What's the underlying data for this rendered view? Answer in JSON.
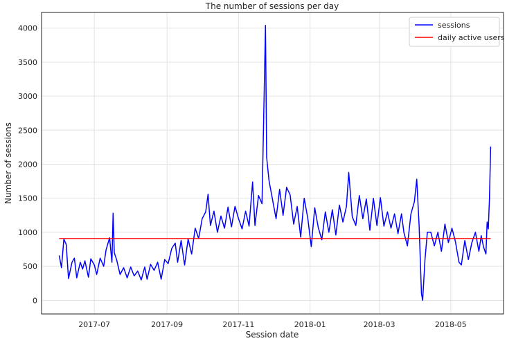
{
  "chart_data": {
    "type": "line",
    "title": "The number of sessions per day",
    "xlabel": "Session date",
    "ylabel": "Number of sessions",
    "xlim": [
      "2017-05-17",
      "2018-06-15"
    ],
    "ylim": [
      -200,
      4230
    ],
    "grid": true,
    "legend_position": "top-right",
    "x_ticks": [
      {
        "date": "2017-07-01",
        "label": "2017-07"
      },
      {
        "date": "2017-09-01",
        "label": "2017-09"
      },
      {
        "date": "2017-11-01",
        "label": "2017-11"
      },
      {
        "date": "2018-01-01",
        "label": "2018-01"
      },
      {
        "date": "2018-03-01",
        "label": "2018-03"
      },
      {
        "date": "2018-05-01",
        "label": "2018-05"
      }
    ],
    "y_ticks": [
      0,
      500,
      1000,
      1500,
      2000,
      2500,
      3000,
      3500,
      4000
    ],
    "series": [
      {
        "name": "sessions",
        "color": "#0000ff",
        "points": [
          [
            "2017-06-01",
            660
          ],
          [
            "2017-06-03",
            480
          ],
          [
            "2017-06-05",
            900
          ],
          [
            "2017-06-07",
            820
          ],
          [
            "2017-06-09",
            320
          ],
          [
            "2017-06-12",
            560
          ],
          [
            "2017-06-14",
            620
          ],
          [
            "2017-06-16",
            330
          ],
          [
            "2017-06-19",
            560
          ],
          [
            "2017-06-21",
            460
          ],
          [
            "2017-06-23",
            580
          ],
          [
            "2017-06-26",
            340
          ],
          [
            "2017-06-28",
            610
          ],
          [
            "2017-07-01",
            520
          ],
          [
            "2017-07-03",
            380
          ],
          [
            "2017-07-06",
            620
          ],
          [
            "2017-07-09",
            500
          ],
          [
            "2017-07-11",
            740
          ],
          [
            "2017-07-14",
            920
          ],
          [
            "2017-07-16",
            560
          ],
          [
            "2017-07-17",
            1280
          ],
          [
            "2017-07-18",
            700
          ],
          [
            "2017-07-20",
            600
          ],
          [
            "2017-07-23",
            380
          ],
          [
            "2017-07-26",
            480
          ],
          [
            "2017-07-29",
            330
          ],
          [
            "2017-08-01",
            490
          ],
          [
            "2017-08-04",
            360
          ],
          [
            "2017-08-07",
            430
          ],
          [
            "2017-08-10",
            300
          ],
          [
            "2017-08-13",
            490
          ],
          [
            "2017-08-15",
            310
          ],
          [
            "2017-08-18",
            530
          ],
          [
            "2017-08-21",
            440
          ],
          [
            "2017-08-24",
            560
          ],
          [
            "2017-08-27",
            310
          ],
          [
            "2017-08-30",
            600
          ],
          [
            "2017-09-02",
            540
          ],
          [
            "2017-09-05",
            760
          ],
          [
            "2017-09-08",
            840
          ],
          [
            "2017-09-10",
            560
          ],
          [
            "2017-09-13",
            880
          ],
          [
            "2017-09-16",
            520
          ],
          [
            "2017-09-19",
            900
          ],
          [
            "2017-09-22",
            680
          ],
          [
            "2017-09-25",
            1060
          ],
          [
            "2017-09-28",
            910
          ],
          [
            "2017-10-01",
            1200
          ],
          [
            "2017-10-04",
            1300
          ],
          [
            "2017-10-06",
            1560
          ],
          [
            "2017-10-08",
            1100
          ],
          [
            "2017-10-11",
            1310
          ],
          [
            "2017-10-14",
            1000
          ],
          [
            "2017-10-17",
            1240
          ],
          [
            "2017-10-20",
            1060
          ],
          [
            "2017-10-23",
            1370
          ],
          [
            "2017-10-26",
            1080
          ],
          [
            "2017-10-29",
            1380
          ],
          [
            "2017-11-01",
            1200
          ],
          [
            "2017-11-04",
            1050
          ],
          [
            "2017-11-07",
            1310
          ],
          [
            "2017-11-10",
            1090
          ],
          [
            "2017-11-13",
            1740
          ],
          [
            "2017-11-15",
            1100
          ],
          [
            "2017-11-18",
            1540
          ],
          [
            "2017-11-21",
            1420
          ],
          [
            "2017-11-24",
            4040
          ],
          [
            "2017-11-25",
            2100
          ],
          [
            "2017-11-27",
            1760
          ],
          [
            "2017-11-30",
            1480
          ],
          [
            "2017-12-03",
            1200
          ],
          [
            "2017-12-06",
            1630
          ],
          [
            "2017-12-09",
            1250
          ],
          [
            "2017-12-12",
            1660
          ],
          [
            "2017-12-15",
            1550
          ],
          [
            "2017-12-18",
            1120
          ],
          [
            "2017-12-21",
            1380
          ],
          [
            "2017-12-24",
            930
          ],
          [
            "2017-12-27",
            1500
          ],
          [
            "2017-12-30",
            1210
          ],
          [
            "2018-01-02",
            790
          ],
          [
            "2018-01-05",
            1360
          ],
          [
            "2018-01-08",
            1070
          ],
          [
            "2018-01-11",
            890
          ],
          [
            "2018-01-14",
            1300
          ],
          [
            "2018-01-17",
            1000
          ],
          [
            "2018-01-20",
            1330
          ],
          [
            "2018-01-23",
            960
          ],
          [
            "2018-01-26",
            1400
          ],
          [
            "2018-01-29",
            1150
          ],
          [
            "2018-02-01",
            1380
          ],
          [
            "2018-02-03",
            1880
          ],
          [
            "2018-02-06",
            1230
          ],
          [
            "2018-02-09",
            1100
          ],
          [
            "2018-02-12",
            1540
          ],
          [
            "2018-02-15",
            1200
          ],
          [
            "2018-02-18",
            1490
          ],
          [
            "2018-02-21",
            1030
          ],
          [
            "2018-02-24",
            1500
          ],
          [
            "2018-02-27",
            1100
          ],
          [
            "2018-03-02",
            1510
          ],
          [
            "2018-03-05",
            1090
          ],
          [
            "2018-03-08",
            1300
          ],
          [
            "2018-03-11",
            1060
          ],
          [
            "2018-03-14",
            1270
          ],
          [
            "2018-03-17",
            980
          ],
          [
            "2018-03-20",
            1270
          ],
          [
            "2018-03-22",
            1000
          ],
          [
            "2018-03-25",
            800
          ],
          [
            "2018-03-28",
            1270
          ],
          [
            "2018-03-31",
            1450
          ],
          [
            "2018-04-02",
            1780
          ],
          [
            "2018-04-04",
            1100
          ],
          [
            "2018-04-06",
            100
          ],
          [
            "2018-04-07",
            0
          ],
          [
            "2018-04-09",
            600
          ],
          [
            "2018-04-11",
            1000
          ],
          [
            "2018-04-14",
            1000
          ],
          [
            "2018-04-17",
            800
          ],
          [
            "2018-04-20",
            1000
          ],
          [
            "2018-04-23",
            720
          ],
          [
            "2018-04-26",
            1120
          ],
          [
            "2018-04-29",
            850
          ],
          [
            "2018-05-02",
            1060
          ],
          [
            "2018-05-05",
            860
          ],
          [
            "2018-05-08",
            560
          ],
          [
            "2018-05-10",
            520
          ],
          [
            "2018-05-13",
            880
          ],
          [
            "2018-05-16",
            600
          ],
          [
            "2018-05-19",
            850
          ],
          [
            "2018-05-22",
            1000
          ],
          [
            "2018-05-25",
            720
          ],
          [
            "2018-05-27",
            950
          ],
          [
            "2018-05-29",
            780
          ],
          [
            "2018-05-31",
            680
          ],
          [
            "2018-06-01",
            1150
          ],
          [
            "2018-06-02",
            1050
          ],
          [
            "2018-06-03",
            1500
          ],
          [
            "2018-06-04",
            2260
          ]
        ]
      },
      {
        "name": "daily active users",
        "color": "#ff0000",
        "points": [
          [
            "2017-06-01",
            907
          ],
          [
            "2018-06-04",
            907
          ]
        ]
      }
    ]
  }
}
